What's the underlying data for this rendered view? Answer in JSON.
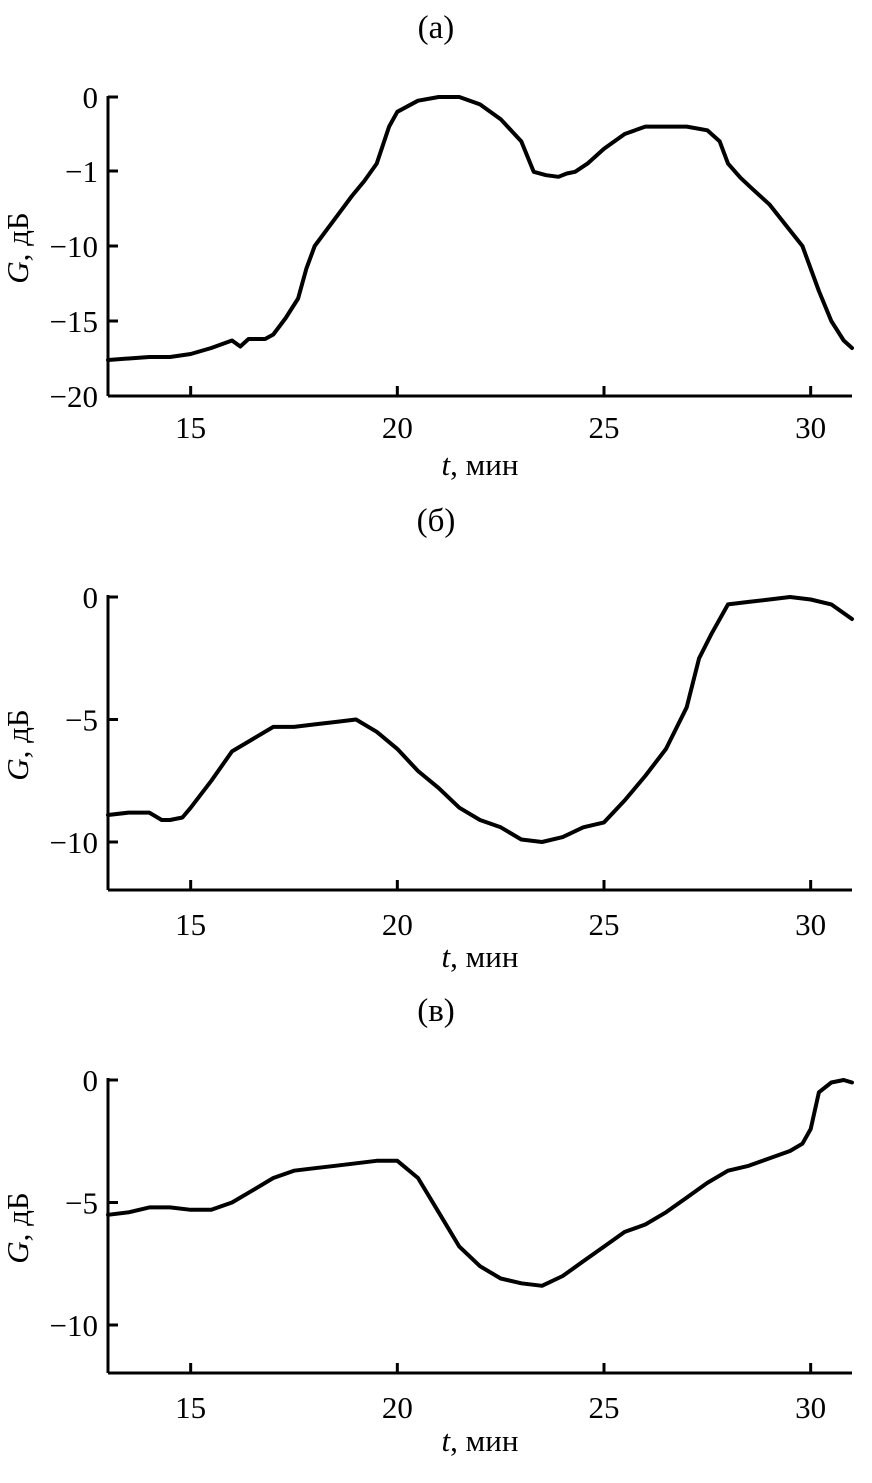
{
  "chart_data": [
    {
      "type": "line",
      "title": "(a)",
      "xlabel_var": "t",
      "xlabel_unit": ", мин",
      "ylabel_var": "G",
      "ylabel_unit": ", дБ",
      "xlim": [
        13,
        31
      ],
      "xticks": [
        15,
        20,
        25,
        30
      ],
      "xtick_labels": [
        "15",
        "20",
        "25",
        "30"
      ],
      "yticks": [
        0,
        -1,
        -10,
        -15,
        -20
      ],
      "ytick_labels": [
        "0",
        "−1",
        "−10",
        "−15",
        "−20"
      ],
      "series": [
        {
          "x": [
            13,
            13.5,
            14,
            14.5,
            15,
            15.5,
            15.8,
            16,
            16.2,
            16.4,
            16.8,
            17,
            17.3,
            17.6,
            17.8,
            18,
            18.3,
            18.6,
            18.9,
            19.2,
            19.5,
            19.8,
            20,
            20.5,
            21,
            21.5,
            22,
            22.5,
            23,
            23.3,
            23.6,
            23.9,
            24.1,
            24.3,
            24.6,
            25,
            25.5,
            26,
            26.5,
            27,
            27.5,
            27.8,
            28,
            28.3,
            28.6,
            29,
            29.4,
            29.8,
            30.2,
            30.5,
            30.8,
            31
          ],
          "y": [
            -17.6,
            -17.5,
            -17.4,
            -17.4,
            -17.2,
            -16.8,
            -16.5,
            -16.3,
            -16.7,
            -16.2,
            -16.2,
            -15.9,
            -14.8,
            -13.5,
            -11.5,
            -10,
            -8,
            -6,
            -4,
            -2.2,
            -0.9,
            -0.4,
            -0.2,
            -0.05,
            0,
            0,
            -0.1,
            -0.3,
            -0.6,
            -1.1,
            -1.5,
            -1.7,
            -1.3,
            -1.1,
            -0.9,
            -0.7,
            -0.5,
            -0.4,
            -0.4,
            -0.4,
            -0.45,
            -0.6,
            -0.9,
            -1.8,
            -3.2,
            -5,
            -7.5,
            -10,
            -13,
            -15,
            -16.3,
            -16.8
          ]
        }
      ]
    },
    {
      "type": "line",
      "title": "(б)",
      "xlabel_var": "t",
      "xlabel_unit": ", мин",
      "ylabel_var": "G",
      "ylabel_unit": ", дБ",
      "xlim": [
        13,
        31
      ],
      "ylim": [
        -12,
        0
      ],
      "xticks": [
        15,
        20,
        25,
        30
      ],
      "xtick_labels": [
        "15",
        "20",
        "25",
        "30"
      ],
      "yticks": [
        0,
        -5,
        -10
      ],
      "ytick_labels": [
        "0",
        "−5",
        "−10"
      ],
      "series": [
        {
          "x": [
            13,
            13.5,
            14,
            14.3,
            14.5,
            14.8,
            15,
            15.5,
            16,
            16.5,
            17,
            17.5,
            18,
            18.5,
            19,
            19.5,
            20,
            20.5,
            21,
            21.5,
            22,
            22.5,
            23,
            23.5,
            24,
            24.5,
            25,
            25.5,
            26,
            26.5,
            27,
            27.3,
            27.6,
            28,
            28.5,
            29,
            29.5,
            30,
            30.5,
            31
          ],
          "y": [
            -8.9,
            -8.8,
            -8.8,
            -9.1,
            -9.1,
            -9,
            -8.6,
            -7.5,
            -6.3,
            -5.8,
            -5.3,
            -5.3,
            -5.2,
            -5.1,
            -5,
            -5.5,
            -6.2,
            -7.1,
            -7.8,
            -8.6,
            -9.1,
            -9.4,
            -9.9,
            -10,
            -9.8,
            -9.4,
            -9.2,
            -8.3,
            -7.3,
            -6.2,
            -4.5,
            -2.5,
            -1.5,
            -0.3,
            -0.2,
            -0.1,
            0,
            -0.1,
            -0.3,
            -0.9
          ]
        }
      ]
    },
    {
      "type": "line",
      "title": "(в)",
      "xlabel_var": "t",
      "xlabel_unit": ", мин",
      "ylabel_var": "G",
      "ylabel_unit": ", дБ",
      "xlim": [
        13,
        31
      ],
      "ylim": [
        -12,
        0
      ],
      "xticks": [
        15,
        20,
        25,
        30
      ],
      "xtick_labels": [
        "15",
        "20",
        "25",
        "30"
      ],
      "yticks": [
        0,
        -5,
        -10
      ],
      "ytick_labels": [
        "0",
        "−5",
        "−10"
      ],
      "series": [
        {
          "x": [
            13,
            13.5,
            14,
            14.5,
            15,
            15.5,
            16,
            16.5,
            17,
            17.5,
            18,
            18.5,
            19,
            19.5,
            20,
            20.5,
            21,
            21.5,
            22,
            22.5,
            23,
            23.5,
            24,
            24.5,
            25,
            25.5,
            26,
            26.5,
            27,
            27.5,
            28,
            28.5,
            29,
            29.5,
            29.8,
            30,
            30.2,
            30.5,
            30.8,
            31
          ],
          "y": [
            -5.5,
            -5.4,
            -5.2,
            -5.2,
            -5.3,
            -5.3,
            -5,
            -4.5,
            -4,
            -3.7,
            -3.6,
            -3.5,
            -3.4,
            -3.3,
            -3.3,
            -4,
            -5.4,
            -6.8,
            -7.6,
            -8.1,
            -8.3,
            -8.4,
            -8,
            -7.4,
            -6.8,
            -6.2,
            -5.9,
            -5.4,
            -4.8,
            -4.2,
            -3.7,
            -3.5,
            -3.2,
            -2.9,
            -2.6,
            -2,
            -0.5,
            -0.1,
            0,
            -0.1
          ]
        }
      ]
    }
  ]
}
